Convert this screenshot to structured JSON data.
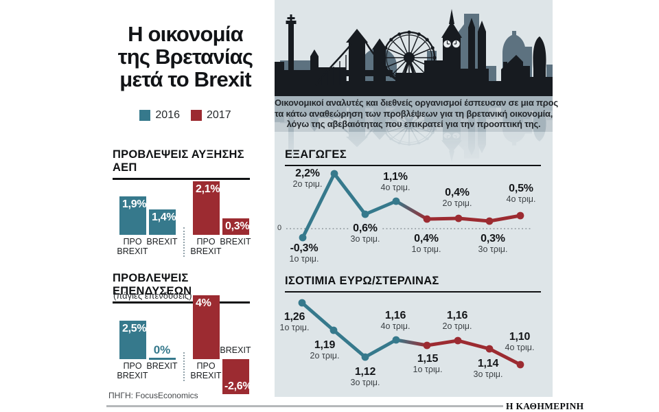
{
  "page": {
    "title_lines": [
      "Η οικονομία",
      "της Βρετανίας",
      "μετά το Brexit"
    ],
    "legend": {
      "y2016": "2016",
      "y2017": "2017"
    },
    "intro_lines": [
      "Οικονομικοί αναλυτές και διεθνείς οργανισμοί έσπευσαν σε μια προς",
      "τα κάτω αναθεώρηση των προβλέψεων για τη βρετανική οικονομία,",
      "λόγω της αβεβαιότητας που επικρατεί για την προοπτική της."
    ],
    "source": "ΠΗΓΗ: FocusEconomics",
    "brand": "Η ΚΑΘΗΜΕΡΙΝΗ"
  },
  "colors": {
    "teal": "#36798c",
    "red": "#9c2b31",
    "panel": "#dee5e8",
    "ink": "#171b20",
    "slate": "#5d7280"
  },
  "chart_data": [
    {
      "type": "bar",
      "title": "ΠΡΟΒΛΕΨΕΙΣ ΑΥΞΗΣΗΣ ΑΕΠ",
      "unit": "%",
      "categories": [
        "ΠΡΟ BREXIT",
        "BREXIT"
      ],
      "series": [
        {
          "name": "2016",
          "values": [
            1.9,
            1.4
          ]
        },
        {
          "name": "2017",
          "values": [
            2.1,
            0.3
          ]
        }
      ],
      "bars": [
        {
          "value": "1,9%",
          "label": "ΠΡΟ BREXIT"
        },
        {
          "value": "1,4%",
          "label": "BREXIT"
        },
        {
          "value": "2,1%",
          "label": "ΠΡΟ BREXIT"
        },
        {
          "value": "0,3%",
          "label": "BREXIT"
        }
      ]
    },
    {
      "type": "bar",
      "title": "ΠΡΟΒΛΕΨΕΙΣ ΕΠΕΝΔΥΣΕΩΝ",
      "subtitle": "(πάγιες επενδύσεις)",
      "unit": "%",
      "categories": [
        "ΠΡΟ BREXIT",
        "BREXIT"
      ],
      "series": [
        {
          "name": "2016",
          "values": [
            2.5,
            0
          ]
        },
        {
          "name": "2017",
          "values": [
            4,
            -2.6
          ]
        }
      ],
      "bars": [
        {
          "value": "2,5%",
          "label": "ΠΡΟ BREXIT"
        },
        {
          "value": "0%",
          "label": "BREXIT"
        },
        {
          "value": "4%",
          "label": "ΠΡΟ BREXIT"
        },
        {
          "value": "-2,6%",
          "label": "BREXIT"
        }
      ]
    },
    {
      "type": "line",
      "title": "ΕΞΑΓΩΓΕΣ",
      "unit": "%",
      "zero_label": "0",
      "x": [
        "1ο τριμ.",
        "2ο τριμ.",
        "3ο τριμ.",
        "4ο τριμ.",
        "1ο τριμ.",
        "2ο τριμ.",
        "3ο τριμ.",
        "4ο τριμ."
      ],
      "series": [
        {
          "name": "2016",
          "values": [
            -0.3,
            2.2,
            0.6,
            1.1
          ]
        },
        {
          "name": "2017",
          "values": [
            0.4,
            0.4,
            0.3,
            0.5
          ]
        }
      ],
      "points": [
        {
          "value": "-0,3%",
          "quarter": "1ο τριμ."
        },
        {
          "value": "2,2%",
          "quarter": "2ο τριμ."
        },
        {
          "value": "0,6%",
          "quarter": "3ο τριμ."
        },
        {
          "value": "1,1%",
          "quarter": "4ο τριμ."
        },
        {
          "value": "0,4%",
          "quarter": "1ο τριμ."
        },
        {
          "value": "0,4%",
          "quarter": "2ο τριμ."
        },
        {
          "value": "0,3%",
          "quarter": "3ο τριμ."
        },
        {
          "value": "0,5%",
          "quarter": "4ο τριμ."
        }
      ]
    },
    {
      "type": "line",
      "title": "ΙΣΟΤΙΜΙΑ ΕΥΡΩ/ΣΤΕΡΛΙΝΑΣ",
      "x": [
        "1ο τριμ.",
        "2ο τριμ.",
        "3ο τριμ.",
        "4ο τριμ.",
        "1ο τριμ.",
        "2ο τριμ.",
        "3ο τριμ.",
        "4ο τριμ."
      ],
      "series": [
        {
          "name": "2016",
          "values": [
            1.26,
            1.19,
            1.12,
            1.16
          ]
        },
        {
          "name": "2017",
          "values": [
            1.15,
            1.16,
            1.14,
            1.1
          ]
        }
      ],
      "points": [
        {
          "value": "1,26",
          "quarter": "1ο τριμ."
        },
        {
          "value": "1,19",
          "quarter": "2ο τριμ."
        },
        {
          "value": "1,12",
          "quarter": "3ο τριμ."
        },
        {
          "value": "1,16",
          "quarter": "4ο τριμ."
        },
        {
          "value": "1,15",
          "quarter": "1ο τριμ."
        },
        {
          "value": "1,16",
          "quarter": "2ο τριμ."
        },
        {
          "value": "1,14",
          "quarter": "3ο τριμ."
        },
        {
          "value": "1,10",
          "quarter": "4ο τριμ."
        }
      ]
    }
  ]
}
